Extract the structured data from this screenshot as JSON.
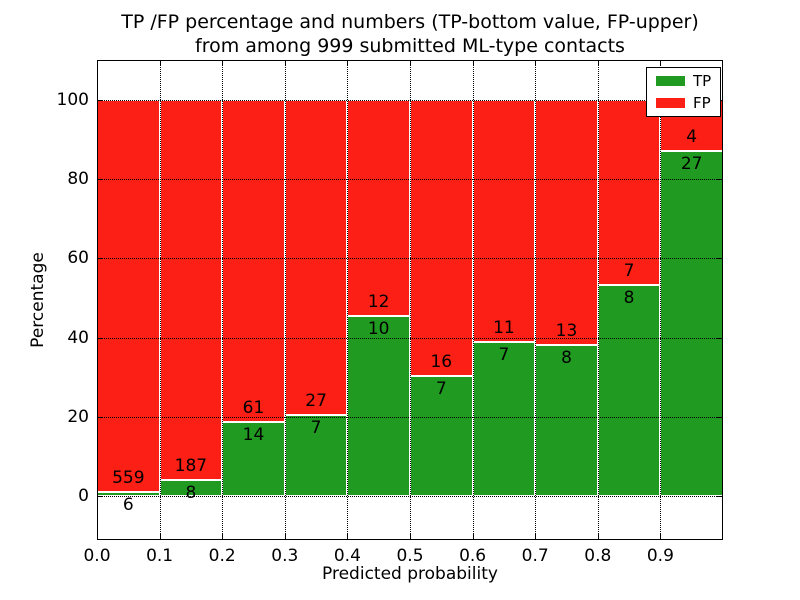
{
  "title": {
    "line1": "TP /FP percentage and numbers (TP-bottom value, FP-upper)",
    "line2": "from among 999 submitted ML-type contacts"
  },
  "axes": {
    "xlabel": "Predicted probability",
    "ylabel": "Percentage",
    "x_tick_labels": [
      "0.0",
      "0.1",
      "0.2",
      "0.3",
      "0.4",
      "0.5",
      "0.6",
      "0.7",
      "0.8",
      "0.9"
    ],
    "x_tick_values": [
      0.0,
      0.1,
      0.2,
      0.3,
      0.4,
      0.5,
      0.6,
      0.7,
      0.8,
      0.9
    ],
    "y_tick_labels": [
      "0",
      "20",
      "40",
      "60",
      "80",
      "100"
    ],
    "y_tick_values": [
      0,
      20,
      40,
      60,
      80,
      100
    ],
    "xlim": [
      0.0,
      1.0
    ],
    "ylim": [
      -11,
      110
    ],
    "grid": "on",
    "grid_style": "dotted",
    "grid_color": "#000000"
  },
  "legend": {
    "position": "upper-right",
    "items": [
      {
        "label": "TP",
        "color": "#219a21"
      },
      {
        "label": "FP",
        "color": "#fb1f15"
      }
    ]
  },
  "colors": {
    "tp": "#219a21",
    "fp": "#fb1f15",
    "bar_edge": "#ffffff",
    "text": "#000000",
    "background": "#ffffff"
  },
  "chart_data": {
    "type": "bar",
    "stacked": true,
    "normalized": "each bar totals 100%",
    "title": "TP /FP percentage and numbers (TP-bottom value, FP-upper) from among 999 submitted ML-type contacts",
    "xlabel": "Predicted probability",
    "ylabel": "Percentage",
    "total_contacts": 999,
    "bin_width": 0.1,
    "series_names": [
      "TP",
      "FP"
    ],
    "bins": [
      {
        "range": [
          0.0,
          0.1
        ],
        "tp_count": 6,
        "fp_count": 559,
        "tp_percent": 1.1,
        "fp_percent": 98.9
      },
      {
        "range": [
          0.1,
          0.2
        ],
        "tp_count": 8,
        "fp_count": 187,
        "tp_percent": 4.1,
        "fp_percent": 95.9
      },
      {
        "range": [
          0.2,
          0.3
        ],
        "tp_count": 14,
        "fp_count": 61,
        "tp_percent": 18.7,
        "fp_percent": 81.3
      },
      {
        "range": [
          0.3,
          0.4
        ],
        "tp_count": 7,
        "fp_count": 27,
        "tp_percent": 20.6,
        "fp_percent": 79.4
      },
      {
        "range": [
          0.4,
          0.5
        ],
        "tp_count": 10,
        "fp_count": 12,
        "tp_percent": 45.5,
        "fp_percent": 54.5
      },
      {
        "range": [
          0.5,
          0.6
        ],
        "tp_count": 7,
        "fp_count": 16,
        "tp_percent": 30.4,
        "fp_percent": 69.6
      },
      {
        "range": [
          0.6,
          0.7
        ],
        "tp_count": 7,
        "fp_count": 11,
        "tp_percent": 38.9,
        "fp_percent": 61.1
      },
      {
        "range": [
          0.7,
          0.8
        ],
        "tp_count": 8,
        "fp_count": 13,
        "tp_percent": 38.1,
        "fp_percent": 61.9
      },
      {
        "range": [
          0.8,
          0.9
        ],
        "tp_count": 8,
        "fp_count": 7,
        "tp_percent": 53.3,
        "fp_percent": 46.7
      },
      {
        "range": [
          0.9,
          1.0
        ],
        "tp_count": 27,
        "fp_count": 4,
        "tp_percent": 87.1,
        "fp_percent": 12.9
      }
    ]
  }
}
